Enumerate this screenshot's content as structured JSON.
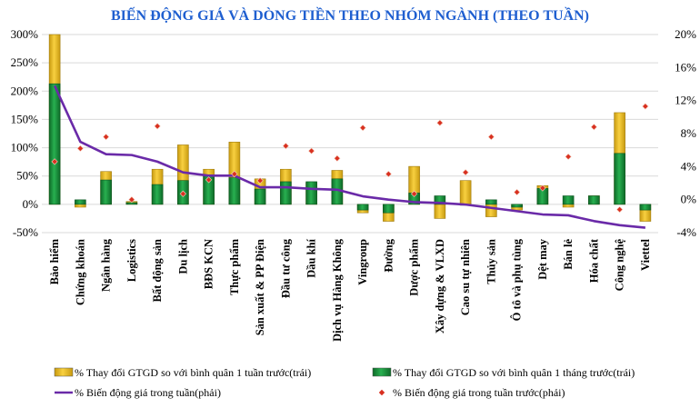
{
  "chart_data": {
    "type": "bar",
    "title": "BIẾN ĐỘNG GIÁ VÀ DÒNG TIỀN THEO NHÓM NGÀNH (THEO TUẦN)",
    "categories": [
      "Bảo hiểm",
      "Chứng khoán",
      "Ngân hàng",
      "Logistics",
      "Bất động sản",
      "Du lịch",
      "BĐS KCN",
      "Thực phẩm",
      "Sản xuất & PP Điện",
      "Đầu tư công",
      "Dầu khí",
      "Dịch vụ Hàng Không",
      "Vingroup",
      "Đường",
      "Dược phẩm",
      "Xây dựng & VLXD",
      "Cao su tự nhiên",
      "Thủy sản",
      "Ô tô và phụ tùng",
      "Dệt may",
      "Bán lẻ",
      "Hóa chất",
      "Công nghệ",
      "Viettel"
    ],
    "series": [
      {
        "name": "% Thay đổi GTGD so với bình quân 1 tuần trước(trái)",
        "type": "bar",
        "axis": "left",
        "color": "#f0c020",
        "values": [
          300,
          -5,
          58,
          5,
          62,
          105,
          62,
          110,
          45,
          62,
          38,
          60,
          -15,
          -30,
          67,
          -25,
          42,
          -22,
          -10,
          33,
          -5,
          15,
          162,
          -30
        ]
      },
      {
        "name": "% Thay đổi GTGD so với bình quân 1 tháng trước(trái)",
        "type": "bar",
        "axis": "left",
        "color": "#1a8a3a",
        "values": [
          213,
          8,
          43,
          3,
          35,
          42,
          50,
          47,
          27,
          40,
          40,
          45,
          -10,
          -15,
          20,
          15,
          0,
          8,
          -5,
          28,
          15,
          15,
          90,
          -10
        ]
      },
      {
        "name": "% Biến động giá trong tuần(phải)",
        "type": "line",
        "axis": "right",
        "color": "#6a2aa8",
        "values": [
          13.8,
          7.0,
          5.5,
          5.4,
          4.6,
          3.3,
          2.9,
          2.9,
          1.5,
          1.5,
          1.3,
          1.2,
          0.4,
          0.0,
          -0.3,
          -0.4,
          -0.6,
          -1.0,
          -1.4,
          -1.8,
          -1.9,
          -2.6,
          -3.1,
          -3.4
        ]
      },
      {
        "name": "% Biến động giá trong tuần trước(phải)",
        "type": "scatter",
        "axis": "right",
        "color": "#d83020",
        "values": [
          4.6,
          6.2,
          7.6,
          0.0,
          8.9,
          0.7,
          2.4,
          3.1,
          2.3,
          6.5,
          5.9,
          5.0,
          8.7,
          3.1,
          0.7,
          9.3,
          3.3,
          7.6,
          0.9,
          1.4,
          5.2,
          8.8,
          -1.2,
          11.3
        ]
      }
    ],
    "y_left": {
      "min": -50,
      "max": 300,
      "ticks": [
        -50,
        0,
        50,
        100,
        150,
        200,
        250,
        300
      ],
      "format": "percent"
    },
    "y_right": {
      "min": -4,
      "max": 20,
      "ticks": [
        -4,
        0,
        4,
        8,
        12,
        16,
        20
      ],
      "format": "percent"
    },
    "legend_position": "bottom"
  }
}
